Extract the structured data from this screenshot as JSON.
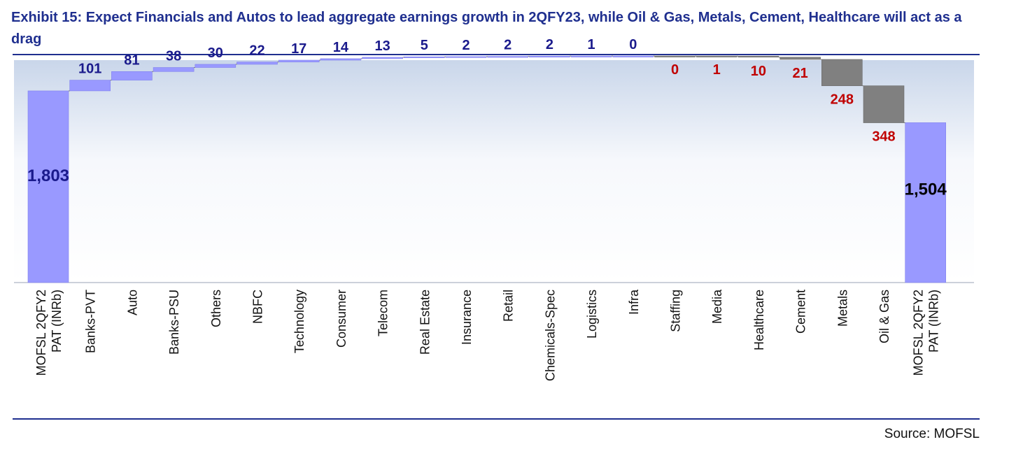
{
  "title": "Exhibit 15: Expect Financials and Autos to lead aggregate earnings growth in 2QFY23, while Oil & Gas, Metals, Cement, Healthcare will act as a drag",
  "source": "Source: MOFSL",
  "colors": {
    "title": "#1f2f8f",
    "total_bar": "#9999ff",
    "positive_bar": "#9999ff",
    "negative_bar": "#808080",
    "positive_label": "#1a1a8c",
    "negative_label": "#c00000"
  },
  "chart_data": {
    "type": "waterfall",
    "categories": [
      "MOFSL 2QFY22 PAT (INRb)",
      "Banks-PVT",
      "Auto",
      "Banks-PSU",
      "Others",
      "NBFC",
      "Technology",
      "Consumer",
      "Telecom",
      "Real Estate",
      "Insurance",
      "Retail",
      "Chemicals-Spec",
      "Logistics",
      "Infra",
      "Staffing",
      "Media",
      "Healthcare",
      "Cement",
      "Metals",
      "Oil & Gas",
      "MOFSL 2QFY23 PAT (INRb)"
    ],
    "labels": [
      "1,803",
      "101",
      "81",
      "38",
      "30",
      "22",
      "17",
      "14",
      "13",
      "5",
      "2",
      "2",
      "2",
      "1",
      "0",
      "0",
      "1",
      "10",
      "21",
      "248",
      "348",
      "1,504"
    ],
    "values": [
      1803,
      101,
      81,
      38,
      30,
      22,
      17,
      14,
      13,
      5,
      2,
      2,
      2,
      1,
      0,
      0,
      -1,
      -10,
      -21,
      -248,
      -348,
      1504
    ],
    "kinds": [
      "total",
      "pos",
      "pos",
      "pos",
      "pos",
      "pos",
      "pos",
      "pos",
      "pos",
      "pos",
      "pos",
      "pos",
      "pos",
      "pos",
      "pos",
      "neg",
      "neg",
      "neg",
      "neg",
      "neg",
      "neg",
      "total"
    ],
    "legend": false,
    "grid": false
  }
}
